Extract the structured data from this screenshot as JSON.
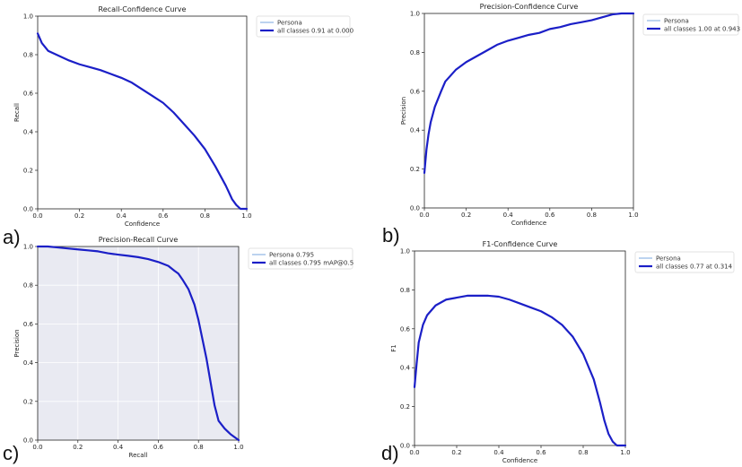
{
  "colors": {
    "curve_main": "#1b1fc7",
    "curve_legend_thin": "#7aa7df",
    "plot_bg_default": "#ffffff",
    "plot_bg_pr": "#e9eaf2"
  },
  "chart_data": [
    {
      "panel_tag": "a)",
      "type": "line",
      "title": "Recall-Confidence Curve",
      "xlabel": "Confidence",
      "ylabel": "Recall",
      "xlim": [
        0,
        1
      ],
      "ylim": [
        0,
        1
      ],
      "grid": false,
      "legend_placement": "top-right",
      "x_ticks": [
        "0.0",
        "0.2",
        "0.4",
        "0.6",
        "0.8",
        "1.0"
      ],
      "y_ticks": [
        "0.0",
        "0.2",
        "0.4",
        "0.6",
        "0.8",
        "1.0"
      ],
      "series": [
        {
          "name": "Persona",
          "values": []
        },
        {
          "name": "all classes 0.91 at 0.000",
          "points": [
            [
              0.0,
              0.91
            ],
            [
              0.02,
              0.86
            ],
            [
              0.05,
              0.82
            ],
            [
              0.1,
              0.795
            ],
            [
              0.15,
              0.77
            ],
            [
              0.2,
              0.75
            ],
            [
              0.25,
              0.735
            ],
            [
              0.3,
              0.72
            ],
            [
              0.35,
              0.7
            ],
            [
              0.4,
              0.68
            ],
            [
              0.45,
              0.655
            ],
            [
              0.5,
              0.62
            ],
            [
              0.55,
              0.585
            ],
            [
              0.6,
              0.55
            ],
            [
              0.65,
              0.5
            ],
            [
              0.7,
              0.44
            ],
            [
              0.75,
              0.38
            ],
            [
              0.8,
              0.31
            ],
            [
              0.85,
              0.22
            ],
            [
              0.9,
              0.12
            ],
            [
              0.93,
              0.05
            ],
            [
              0.95,
              0.02
            ],
            [
              0.97,
              0.0
            ],
            [
              1.0,
              0.0
            ]
          ]
        }
      ]
    },
    {
      "panel_tag": "b)",
      "type": "line",
      "title": "Precision-Confidence Curve",
      "xlabel": "Confidence",
      "ylabel": "Precision",
      "xlim": [
        0,
        1
      ],
      "ylim": [
        0,
        1
      ],
      "grid": false,
      "legend_placement": "top-right",
      "x_ticks": [
        "0.0",
        "0.2",
        "0.4",
        "0.6",
        "0.8",
        "1.0"
      ],
      "y_ticks": [
        "0.0",
        "0.2",
        "0.4",
        "0.6",
        "0.8",
        "1.0"
      ],
      "series": [
        {
          "name": "Persona",
          "values": []
        },
        {
          "name": "all classes 1.00 at 0.943",
          "points": [
            [
              0.0,
              0.18
            ],
            [
              0.01,
              0.3
            ],
            [
              0.02,
              0.38
            ],
            [
              0.03,
              0.44
            ],
            [
              0.05,
              0.52
            ],
            [
              0.08,
              0.6
            ],
            [
              0.1,
              0.65
            ],
            [
              0.15,
              0.71
            ],
            [
              0.2,
              0.75
            ],
            [
              0.25,
              0.78
            ],
            [
              0.3,
              0.81
            ],
            [
              0.35,
              0.84
            ],
            [
              0.4,
              0.86
            ],
            [
              0.45,
              0.875
            ],
            [
              0.5,
              0.89
            ],
            [
              0.55,
              0.9
            ],
            [
              0.6,
              0.92
            ],
            [
              0.65,
              0.93
            ],
            [
              0.7,
              0.945
            ],
            [
              0.75,
              0.955
            ],
            [
              0.8,
              0.965
            ],
            [
              0.85,
              0.98
            ],
            [
              0.9,
              0.995
            ],
            [
              0.943,
              1.0
            ],
            [
              1.0,
              1.0
            ]
          ]
        }
      ]
    },
    {
      "panel_tag": "c)",
      "type": "line",
      "title": "Precision-Recall Curve",
      "xlabel": "Recall",
      "ylabel": "Precision",
      "xlim": [
        0,
        1
      ],
      "ylim": [
        0,
        1
      ],
      "grid": true,
      "legend_placement": "top-right",
      "x_ticks": [
        "0.0",
        "0.2",
        "0.4",
        "0.6",
        "0.8",
        "1.0"
      ],
      "y_ticks": [
        "0.0",
        "0.2",
        "0.4",
        "0.6",
        "0.8",
        "1.0"
      ],
      "series": [
        {
          "name": "Persona 0.795",
          "values": []
        },
        {
          "name": "all classes 0.795 mAP@0.5",
          "points": [
            [
              0.0,
              1.0
            ],
            [
              0.05,
              1.0
            ],
            [
              0.1,
              0.995
            ],
            [
              0.15,
              0.99
            ],
            [
              0.2,
              0.985
            ],
            [
              0.25,
              0.98
            ],
            [
              0.3,
              0.975
            ],
            [
              0.35,
              0.965
            ],
            [
              0.4,
              0.958
            ],
            [
              0.45,
              0.952
            ],
            [
              0.5,
              0.945
            ],
            [
              0.55,
              0.935
            ],
            [
              0.6,
              0.92
            ],
            [
              0.65,
              0.9
            ],
            [
              0.68,
              0.875
            ],
            [
              0.7,
              0.86
            ],
            [
              0.72,
              0.83
            ],
            [
              0.75,
              0.78
            ],
            [
              0.78,
              0.7
            ],
            [
              0.8,
              0.62
            ],
            [
              0.82,
              0.52
            ],
            [
              0.84,
              0.42
            ],
            [
              0.86,
              0.3
            ],
            [
              0.88,
              0.18
            ],
            [
              0.9,
              0.1
            ],
            [
              0.93,
              0.06
            ],
            [
              0.96,
              0.03
            ],
            [
              1.0,
              0.0
            ]
          ]
        }
      ]
    },
    {
      "panel_tag": "d)",
      "type": "line",
      "title": "F1-Confidence Curve",
      "xlabel": "Confidence",
      "ylabel": "F1",
      "xlim": [
        0,
        1
      ],
      "ylim": [
        0,
        1
      ],
      "grid": false,
      "legend_placement": "top-right",
      "x_ticks": [
        "0.0",
        "0.2",
        "0.4",
        "0.6",
        "0.8",
        "1.0"
      ],
      "y_ticks": [
        "0.0",
        "0.2",
        "0.4",
        "0.6",
        "0.8",
        "1.0"
      ],
      "series": [
        {
          "name": "Persona",
          "values": []
        },
        {
          "name": "all classes 0.77 at 0.314",
          "points": [
            [
              0.0,
              0.3
            ],
            [
              0.01,
              0.42
            ],
            [
              0.02,
              0.53
            ],
            [
              0.04,
              0.62
            ],
            [
              0.06,
              0.67
            ],
            [
              0.1,
              0.72
            ],
            [
              0.15,
              0.75
            ],
            [
              0.2,
              0.76
            ],
            [
              0.25,
              0.77
            ],
            [
              0.3,
              0.77
            ],
            [
              0.35,
              0.77
            ],
            [
              0.4,
              0.765
            ],
            [
              0.45,
              0.75
            ],
            [
              0.5,
              0.73
            ],
            [
              0.55,
              0.71
            ],
            [
              0.6,
              0.69
            ],
            [
              0.65,
              0.66
            ],
            [
              0.7,
              0.62
            ],
            [
              0.75,
              0.56
            ],
            [
              0.8,
              0.47
            ],
            [
              0.85,
              0.34
            ],
            [
              0.88,
              0.22
            ],
            [
              0.9,
              0.13
            ],
            [
              0.92,
              0.06
            ],
            [
              0.94,
              0.02
            ],
            [
              0.96,
              0.0
            ],
            [
              1.0,
              0.0
            ]
          ]
        }
      ]
    }
  ]
}
